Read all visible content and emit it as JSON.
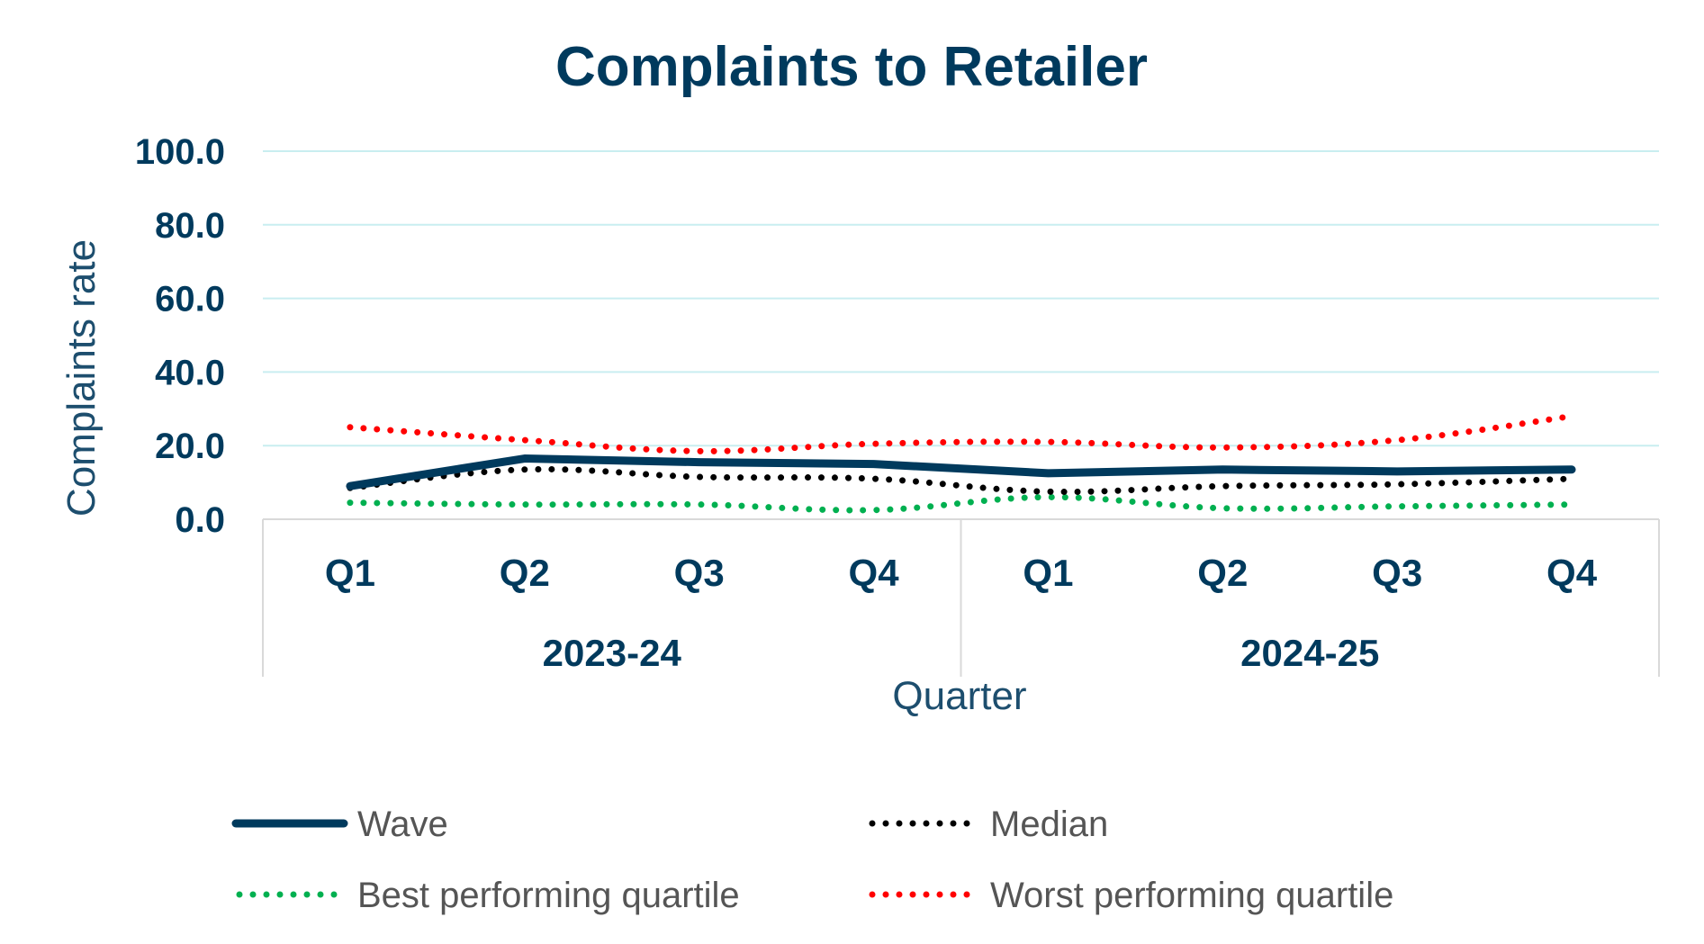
{
  "chart_data": {
    "type": "line",
    "title": "Complaints to Retailer",
    "xlabel": "Quarter",
    "ylabel": "Complaints rate",
    "ylim": [
      0,
      100
    ],
    "yticks": [
      "0.0",
      "20.0",
      "40.0",
      "60.0",
      "80.0",
      "100.0"
    ],
    "categories": [
      "Q1",
      "Q2",
      "Q3",
      "Q4",
      "Q1",
      "Q2",
      "Q3",
      "Q4"
    ],
    "groups": [
      {
        "label": "2023-24",
        "span": 4
      },
      {
        "label": "2024-25",
        "span": 4
      }
    ],
    "grid": true,
    "legend_position": "bottom",
    "series": [
      {
        "name": "Wave",
        "style": "solid",
        "color": "#003a5d",
        "values": [
          9.0,
          16.5,
          15.5,
          15.0,
          12.5,
          13.5,
          13.0,
          13.5
        ]
      },
      {
        "name": "Median",
        "style": "dotted",
        "color": "#000000",
        "values": [
          8.5,
          13.5,
          11.5,
          11.0,
          7.5,
          9.0,
          9.5,
          11.0
        ]
      },
      {
        "name": "Best performing quartile",
        "style": "dotted",
        "color": "#00b050",
        "values": [
          4.5,
          4.0,
          4.0,
          2.5,
          6.0,
          3.0,
          3.5,
          4.0
        ]
      },
      {
        "name": "Worst performing quartile",
        "style": "dotted",
        "color": "#ff0000",
        "values": [
          25.0,
          21.5,
          18.5,
          20.5,
          21.0,
          19.5,
          21.5,
          28.0
        ]
      }
    ]
  }
}
